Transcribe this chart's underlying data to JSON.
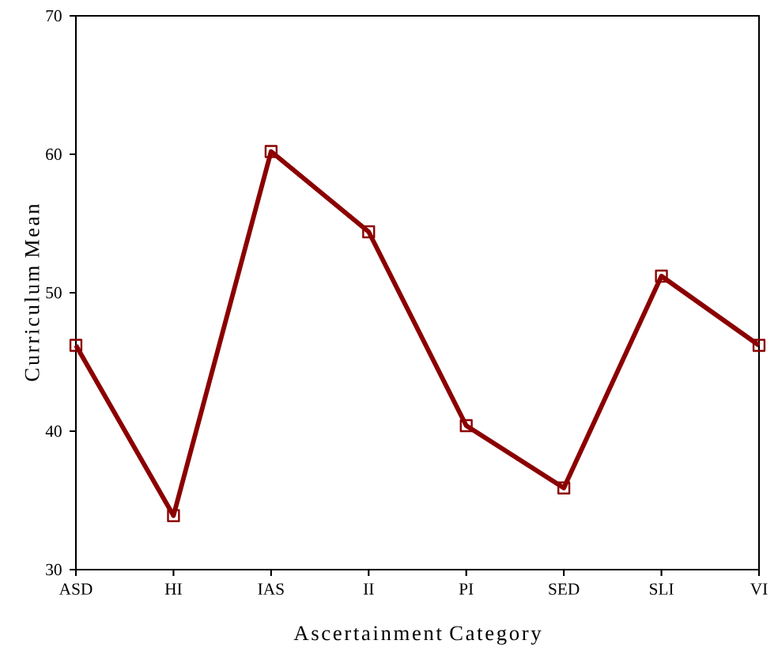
{
  "chart_data": {
    "type": "line",
    "xlabel": "Ascertainment Category",
    "ylabel": "Curriculum Mean",
    "categories": [
      "ASD",
      "HI",
      "IAS",
      "II",
      "PI",
      "SED",
      "SLI",
      "VI"
    ],
    "values": [
      46.2,
      33.9,
      60.2,
      54.4,
      40.4,
      35.9,
      51.2,
      46.2
    ],
    "color": "#8b0000",
    "marker": "square",
    "line_style": "solid",
    "ylim": [
      30,
      70
    ],
    "yticks": [
      30,
      40,
      50,
      60,
      70
    ]
  }
}
